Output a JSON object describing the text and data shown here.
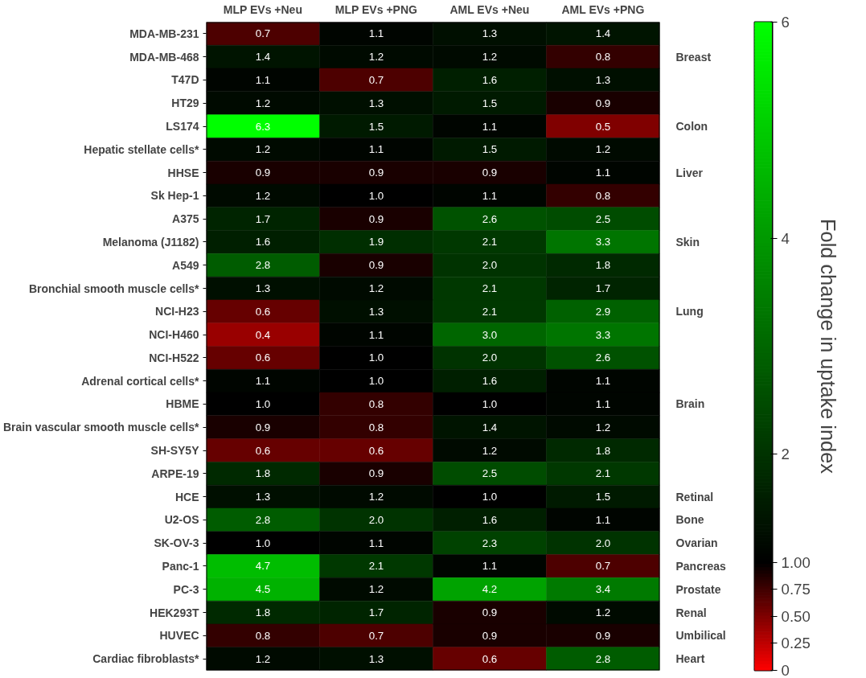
{
  "chart_data": {
    "type": "heatmap",
    "clabel": "Fold change in uptake index",
    "categories": [
      "MLP EVs +Neu",
      "MLP EVs +PNG",
      "AML EVs +Neu",
      "AML EVs +PNG"
    ],
    "y_categories": [
      "MDA-MB-231",
      "MDA-MB-468",
      "T47D",
      "HT29",
      "LS174",
      "Hepatic stellate cells*",
      "HHSE",
      "Sk Hep-1",
      "A375",
      "Melanoma (J1182)",
      "A549",
      "Bronchial smooth muscle cells*",
      "NCI-H23",
      "NCI-H460",
      "NCI-H522",
      "Adrenal cortical cells*",
      "HBME",
      "Brain vascular smooth muscle cells*",
      "SH-SY5Y",
      "ARPE-19",
      "HCE",
      "U2-OS",
      "SK-OV-3",
      "Panc-1",
      "PC-3",
      "HEK293T",
      "HUVEC",
      "Cardiac fibroblasts*"
    ],
    "cells": [
      [
        0.7,
        1.1,
        1.3,
        1.4
      ],
      [
        1.4,
        1.2,
        1.2,
        0.8
      ],
      [
        1.1,
        0.7,
        1.6,
        1.3
      ],
      [
        1.2,
        1.3,
        1.5,
        0.9
      ],
      [
        6.3,
        1.5,
        1.1,
        0.5
      ],
      [
        1.2,
        1.1,
        1.5,
        1.2
      ],
      [
        0.9,
        0.9,
        0.9,
        1.1
      ],
      [
        1.2,
        1.0,
        1.1,
        0.8
      ],
      [
        1.7,
        0.9,
        2.6,
        2.5
      ],
      [
        1.6,
        1.9,
        2.1,
        3.3
      ],
      [
        2.8,
        0.9,
        2.0,
        1.8
      ],
      [
        1.3,
        1.2,
        2.1,
        1.7
      ],
      [
        0.6,
        1.3,
        2.1,
        2.9
      ],
      [
        0.4,
        1.1,
        3.0,
        3.3
      ],
      [
        0.6,
        1.0,
        2.0,
        2.6
      ],
      [
        1.1,
        1.0,
        1.6,
        1.1
      ],
      [
        1.0,
        0.8,
        1.0,
        1.1
      ],
      [
        0.9,
        0.8,
        1.4,
        1.2
      ],
      [
        0.6,
        0.6,
        1.2,
        1.8
      ],
      [
        1.8,
        0.9,
        2.5,
        2.1
      ],
      [
        1.3,
        1.2,
        1.0,
        1.5
      ],
      [
        2.8,
        2.0,
        1.6,
        1.1
      ],
      [
        1.0,
        1.1,
        2.3,
        2.0
      ],
      [
        4.7,
        2.1,
        1.1,
        0.7
      ],
      [
        4.5,
        1.2,
        4.2,
        3.4
      ],
      [
        1.8,
        1.7,
        0.9,
        1.2
      ],
      [
        0.8,
        0.7,
        0.9,
        0.9
      ],
      [
        1.2,
        1.3,
        0.6,
        2.8
      ]
    ],
    "cell_labels": [
      [
        "0.7",
        "1.1",
        "1.3",
        "1.4"
      ],
      [
        "1.4",
        "1.2",
        "1.2",
        "0.8"
      ],
      [
        "1.1",
        "0.7",
        "1.6",
        "1.3"
      ],
      [
        "1.2",
        "1.3",
        "1.5",
        "0.9"
      ],
      [
        "6.3",
        "1.5",
        "1.1",
        "0.5"
      ],
      [
        "1.2",
        "1.1",
        "1.5",
        "1.2"
      ],
      [
        "0.9",
        "0.9",
        "0.9",
        "1.1"
      ],
      [
        "1.2",
        "1.0",
        "1.1",
        "0.8"
      ],
      [
        "1.7",
        "0.9",
        "2.6",
        "2.5"
      ],
      [
        "1.6",
        "1.9",
        "2.1",
        "3.3"
      ],
      [
        "2.8",
        "0.9",
        "2.0",
        "1.8"
      ],
      [
        "1.3",
        "1.2",
        "2.1",
        "1.7"
      ],
      [
        "0.6",
        "1.3",
        "2.1",
        "2.9"
      ],
      [
        "0.4",
        "1.1",
        "3.0",
        "3.3"
      ],
      [
        "0.6",
        "1.0",
        "2.0",
        "2.6"
      ],
      [
        "1.1",
        "1.0",
        "1.6",
        "1.1"
      ],
      [
        "1.0",
        "0.8",
        "1.0",
        "1.1"
      ],
      [
        "0.9",
        "0.8",
        "1.4",
        "1.2"
      ],
      [
        "0.6",
        "0.6",
        "1.2",
        "1.8"
      ],
      [
        "1.8",
        "0.9",
        "2.5",
        "2.1"
      ],
      [
        "1.3",
        "1.2",
        "1.0",
        "1.5"
      ],
      [
        "2.8",
        "2.0",
        "1.6",
        "1.1"
      ],
      [
        "1.0",
        "1.1",
        "2.3",
        "2.0"
      ],
      [
        "4.7",
        "2.1",
        "1.1",
        "0.7"
      ],
      [
        "4.5",
        "1.2",
        "4.2",
        "3.4"
      ],
      [
        "1.8",
        "1.7",
        "0.9",
        "1.2"
      ],
      [
        "0.8",
        "0.7",
        "0.9",
        "0.9"
      ],
      [
        "1.2",
        "1.3",
        "0.6",
        "2.8"
      ]
    ],
    "clim": [
      0,
      6
    ],
    "cticks": [
      0,
      {
        "value": 0.25,
        "label": "0.25"
      },
      {
        "value": 0.5,
        "label": "0.50"
      },
      {
        "value": 0.75,
        "label": "0.75"
      },
      {
        "value": 1,
        "label": "1.00"
      },
      2,
      4,
      6
    ],
    "y2_categories": [
      null,
      "Breast",
      null,
      null,
      "Colon",
      null,
      "Liver",
      null,
      null,
      "Skin",
      null,
      null,
      "Lung",
      null,
      null,
      null,
      "Brain",
      null,
      null,
      null,
      "Retinal",
      "Bone",
      "Ovarian",
      "Pancreas",
      "Prostate",
      "Renal",
      "Umbilical",
      "Heart"
    ]
  }
}
